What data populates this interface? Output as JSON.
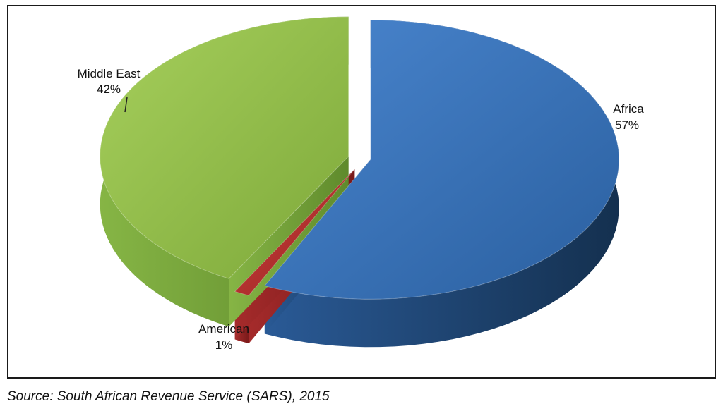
{
  "chart_data": {
    "type": "pie",
    "slices": [
      {
        "label": "Africa",
        "percent_label": "57%",
        "value": 57,
        "color": "#2f6cb3"
      },
      {
        "label": "American",
        "percent_label": "1%",
        "value": 1,
        "color": "#b52a2a"
      },
      {
        "label": "Middle East",
        "percent_label": "42%",
        "value": 42,
        "color": "#8fc043"
      }
    ],
    "legend": "none",
    "style": "3d-exploded"
  },
  "source": "Source: South African Revenue Service (SARS), 2015"
}
